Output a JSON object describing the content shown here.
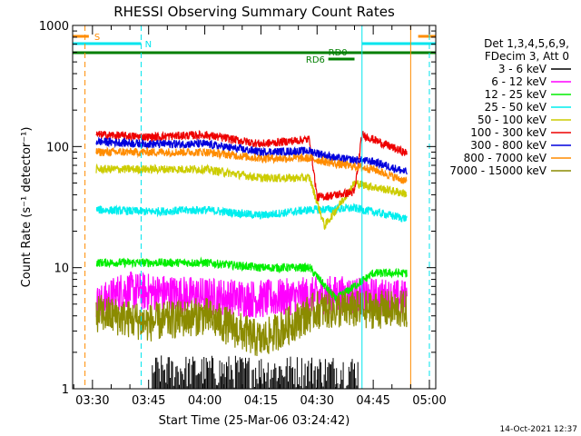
{
  "chart_data": {
    "type": "line",
    "title": "RHESSI Observing Summary Count Rates",
    "xlabel": "Start Time (25-Mar-06 03:24:42)",
    "ylabel": "Count Rate (s⁻¹ detector⁻¹)",
    "yscale": "log",
    "ylim": [
      1,
      1000
    ],
    "xlim_minutes": [
      0,
      97
    ],
    "x_ticks": [
      "03:30",
      "03:45",
      "04:00",
      "04:15",
      "04:30",
      "04:45",
      "05:00"
    ],
    "y_ticks": [
      "1",
      "10",
      "100",
      "1000"
    ],
    "legend_header": [
      "Det 1,3,4,5,6,9,",
      "FDecim 3, Att 0"
    ],
    "legend_placement": "right",
    "timestamp": "14-Oct-2021 12:37",
    "flags": [
      {
        "label": "S",
        "color": "#ff8c00"
      },
      {
        "label": "N",
        "color": "#00e5ee"
      },
      {
        "label": "RD0",
        "color": "#007f00"
      },
      {
        "label": "RD6",
        "color": "#007f00"
      }
    ],
    "series": [
      {
        "name": "3 - 6 keV",
        "color": "#000000"
      },
      {
        "name": "6 - 12 keV",
        "color": "#ff00ff"
      },
      {
        "name": "12 - 25 keV",
        "color": "#00ee00"
      },
      {
        "name": "25 - 50 keV",
        "color": "#00eeee"
      },
      {
        "name": "50 - 100 keV",
        "color": "#cccc00"
      },
      {
        "name": "100 - 300 keV",
        "color": "#ee0000"
      },
      {
        "name": "300 - 800 keV",
        "color": "#0000dd"
      },
      {
        "name": "800 - 7000 keV",
        "color": "#ff8c00"
      },
      {
        "name": "7000 - 15000 keV",
        "color": "#8b8b00"
      }
    ],
    "approx_levels": {
      "100 - 300 keV": {
        "03:32": 125,
        "03:45": 120,
        "04:00": 125,
        "04:15": 105,
        "04:28": 115,
        "04:30": 38,
        "04:40": 42,
        "04:42": 125,
        "04:55": 85
      },
      "300 - 800 keV": {
        "03:32": 110,
        "03:45": 105,
        "04:00": 105,
        "04:15": 90,
        "04:28": 92,
        "04:35": 80,
        "04:45": 75,
        "04:55": 60
      },
      "800 - 7000 keV": {
        "03:32": 90,
        "03:45": 90,
        "04:00": 90,
        "04:15": 80,
        "04:28": 80,
        "04:35": 72,
        "04:45": 65,
        "04:55": 50
      },
      "50 - 100 keV": {
        "03:32": 65,
        "03:45": 65,
        "04:00": 65,
        "04:15": 55,
        "04:28": 55,
        "04:32": 22,
        "04:40": 50,
        "04:55": 40
      },
      "25 - 50 keV": {
        "03:32": 30,
        "03:45": 29,
        "04:00": 30,
        "04:15": 27,
        "04:28": 30,
        "04:40": 31,
        "04:55": 25
      },
      "12 - 25 keV": {
        "03:32": 11,
        "03:45": 11,
        "04:00": 11,
        "04:15": 10,
        "04:28": 10,
        "04:35": 5.5,
        "04:45": 9,
        "04:55": 9
      },
      "6 - 12 keV": {
        "03:32": 5,
        "03:38": 6.5,
        "04:00": 5.8,
        "04:15": 5.5,
        "04:35": 6.0,
        "04:55": 5.5
      },
      "7000 - 15000 keV": {
        "03:32": 4.2,
        "03:45": 3.5,
        "04:00": 4.0,
        "04:15": 2.5,
        "04:30": 4.5,
        "04:45": 4.5,
        "04:55": 4.5
      },
      "3 - 6 keV": {
        "03:47": 1.6,
        "04:03": 1.5,
        "04:30": 1.8,
        "04:40": 1.7
      }
    }
  }
}
